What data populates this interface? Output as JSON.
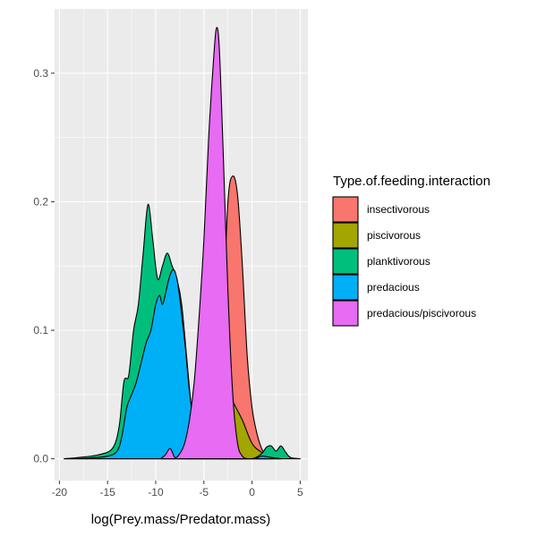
{
  "chart_data": {
    "type": "area",
    "subtype": "density",
    "title": "",
    "xlabel": "log(Prey.mass/Predator.mass)",
    "ylabel": "",
    "xlim": [
      -20.5,
      5.8
    ],
    "ylim": [
      -0.017,
      0.35
    ],
    "xticks": [
      -20,
      -15,
      -10,
      -5,
      0,
      5
    ],
    "xtick_labels": [
      "-20",
      "-15",
      "-10",
      "-5",
      "0",
      "5"
    ],
    "yticks": [
      0.0,
      0.1,
      0.2,
      0.3
    ],
    "ytick_labels": [
      "0.0",
      "0.1",
      "0.2",
      "0.3"
    ],
    "grid": true,
    "panel_background": "#ebebeb",
    "grid_color": "#ffffff",
    "legend": {
      "title": "Type.of.feeding.interaction",
      "position": "right"
    },
    "series": [
      {
        "name": "insectivorous",
        "color": "#F8766D",
        "x": [
          -3.5,
          -3.0,
          -2.5,
          -2.0,
          -1.5,
          -1.0,
          -0.5,
          0.0,
          0.5,
          1.0,
          1.5,
          2.0
        ],
        "y": [
          0.0,
          0.11,
          0.2,
          0.22,
          0.205,
          0.15,
          0.08,
          0.04,
          0.02,
          0.008,
          0.002,
          0.0
        ]
      },
      {
        "name": "piscivorous",
        "color": "#A3A500",
        "x": [
          -6.8,
          -6.0,
          -5.0,
          -4.0,
          -3.0,
          -2.0,
          -1.0,
          0.0,
          1.0,
          2.0,
          3.0
        ],
        "y": [
          0.0,
          0.015,
          0.04,
          0.08,
          0.065,
          0.045,
          0.03,
          0.012,
          0.005,
          0.001,
          0.0
        ]
      },
      {
        "name": "planktivorous",
        "color": "#00BF7D",
        "x": [
          -19.5,
          -18.0,
          -16.0,
          -14.5,
          -13.8,
          -13.3,
          -12.8,
          -12.3,
          -11.8,
          -11.3,
          -10.8,
          -10.3,
          -9.8,
          -9.3,
          -8.8,
          -8.3,
          -7.8,
          -7.3,
          -6.8,
          -6.3,
          -5.8,
          -5.3,
          -4.8,
          -2.0,
          0.0,
          1.0,
          1.5,
          2.0,
          2.5,
          3.0,
          3.5,
          4.0,
          5.0
        ],
        "y": [
          0.0,
          0.001,
          0.003,
          0.008,
          0.025,
          0.06,
          0.065,
          0.1,
          0.12,
          0.16,
          0.198,
          0.17,
          0.14,
          0.15,
          0.16,
          0.15,
          0.14,
          0.12,
          0.08,
          0.04,
          0.015,
          0.006,
          0.002,
          0.0,
          0.0,
          0.004,
          0.009,
          0.01,
          0.006,
          0.01,
          0.005,
          0.001,
          0.0
        ]
      },
      {
        "name": "predacious",
        "color": "#00B0F6",
        "x": [
          -19.5,
          -17.0,
          -15.0,
          -14.0,
          -13.5,
          -13.0,
          -12.5,
          -12.0,
          -11.5,
          -11.0,
          -10.5,
          -10.0,
          -9.6,
          -9.3,
          -9.0,
          -8.7,
          -8.4,
          -8.1,
          -7.8,
          -7.5,
          -7.2,
          -6.9,
          -6.6,
          -6.3,
          -6.0,
          -5.7,
          -5.4,
          -5.0,
          -4.5,
          -4.0,
          -3.0,
          0.0,
          1.0,
          2.0,
          3.0
        ],
        "y": [
          0.0,
          0.0005,
          0.002,
          0.006,
          0.018,
          0.04,
          0.05,
          0.06,
          0.075,
          0.09,
          0.1,
          0.12,
          0.127,
          0.12,
          0.128,
          0.138,
          0.145,
          0.147,
          0.14,
          0.125,
          0.105,
          0.085,
          0.06,
          0.04,
          0.025,
          0.015,
          0.008,
          0.005,
          0.006,
          0.004,
          0.0,
          0.0,
          0.002,
          0.001,
          0.0
        ]
      },
      {
        "name": "predacious/piscivorous",
        "color": "#E76BF3",
        "x": [
          -9.5,
          -9.0,
          -8.5,
          -8.0,
          -7.5,
          -7.0,
          -6.5,
          -6.0,
          -5.5,
          -5.0,
          -4.5,
          -4.0,
          -3.7,
          -3.4,
          -3.0,
          -2.5,
          -2.0,
          -1.5,
          -1.0,
          -0.5
        ],
        "y": [
          0.0,
          0.003,
          0.008,
          0.001,
          0.004,
          0.012,
          0.03,
          0.06,
          0.11,
          0.17,
          0.25,
          0.31,
          0.335,
          0.32,
          0.24,
          0.13,
          0.05,
          0.012,
          0.002,
          0.0
        ]
      }
    ]
  }
}
